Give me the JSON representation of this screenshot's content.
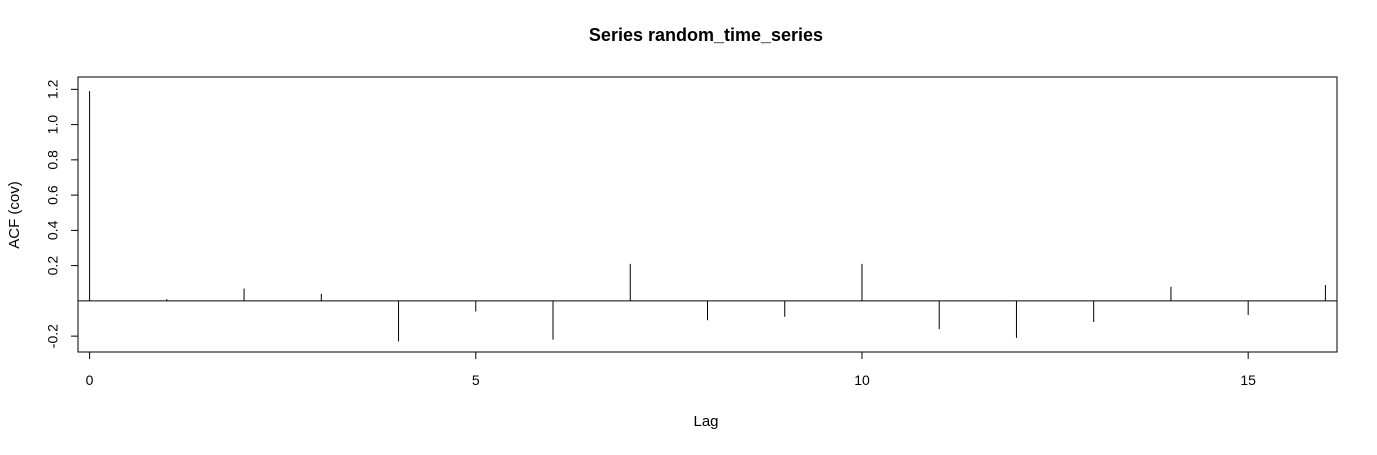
{
  "chart_data": {
    "type": "bar",
    "title": "Series  random_time_series",
    "xlabel": "Lag",
    "ylabel": "ACF (cov)",
    "xlim": [
      -0.15,
      16.15
    ],
    "ylim": [
      -0.29,
      1.27
    ],
    "x_ticks": [
      0,
      5,
      10,
      15
    ],
    "y_ticks": [
      -0.2,
      0.2,
      0.4,
      0.6,
      0.8,
      1.0,
      1.2
    ],
    "y_tick_labels": [
      "-0.2",
      "0.2",
      "0.4",
      "0.6",
      "0.8",
      "1.0",
      "1.2"
    ],
    "zero_line": true,
    "grid": false,
    "series": [
      {
        "x": [
          0,
          1,
          2,
          3,
          4,
          5,
          6,
          7,
          8,
          9,
          10,
          11,
          12,
          13,
          14,
          15,
          16
        ],
        "values": [
          1.19,
          0.01,
          0.07,
          0.04,
          -0.23,
          -0.06,
          -0.22,
          0.21,
          -0.11,
          -0.09,
          0.21,
          -0.16,
          -0.21,
          -0.12,
          0.08,
          -0.08,
          0.09
        ]
      }
    ]
  }
}
